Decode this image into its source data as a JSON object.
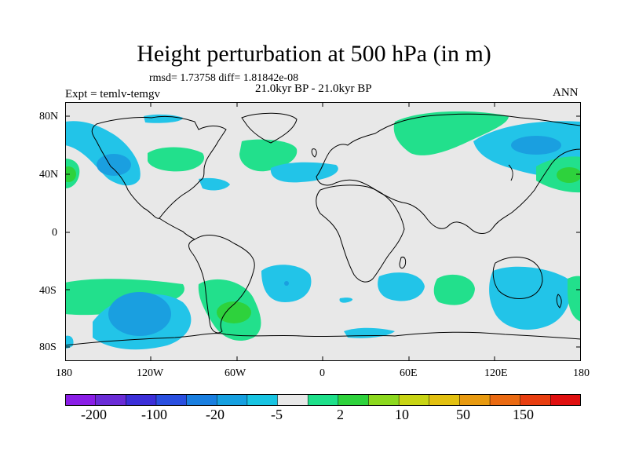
{
  "figure": {
    "title": "Height perturbation at 500 hPa (in m)",
    "stats": "rmsd= 1.73758  diff= 1.81842e-08",
    "period": "21.0kyr BP - 21.0kyr BP",
    "experiment": "Expt = temlv-temgv",
    "season": "ANN"
  },
  "axes": {
    "lat_labels": [
      "80N",
      "40N",
      "0",
      "40S",
      "80S"
    ],
    "lon_labels": [
      "180",
      "120W",
      "60W",
      "0",
      "60E",
      "120E",
      "180"
    ]
  },
  "colorbar": {
    "colors": [
      "#8a1ee6",
      "#6a2cd6",
      "#3c2fd8",
      "#2a4fe0",
      "#1a7fe0",
      "#16a0e0",
      "#18c4e2",
      "#e8e8e8",
      "#1ee08a",
      "#2ed23c",
      "#8cd81e",
      "#c8d414",
      "#e2c010",
      "#e89a10",
      "#ea6a12",
      "#e83e10",
      "#e01010"
    ],
    "labels": [
      "-200",
      "-100",
      "-20",
      "-5",
      "2",
      "10",
      "50",
      "150"
    ]
  },
  "colors": {
    "ocean_background": "#e8e8e8",
    "negative_anomaly": "#22c4e8",
    "strong_negative": "#1a9fe0",
    "positive_anomaly": "#22e08c",
    "strong_positive": "#2ed23c"
  }
}
